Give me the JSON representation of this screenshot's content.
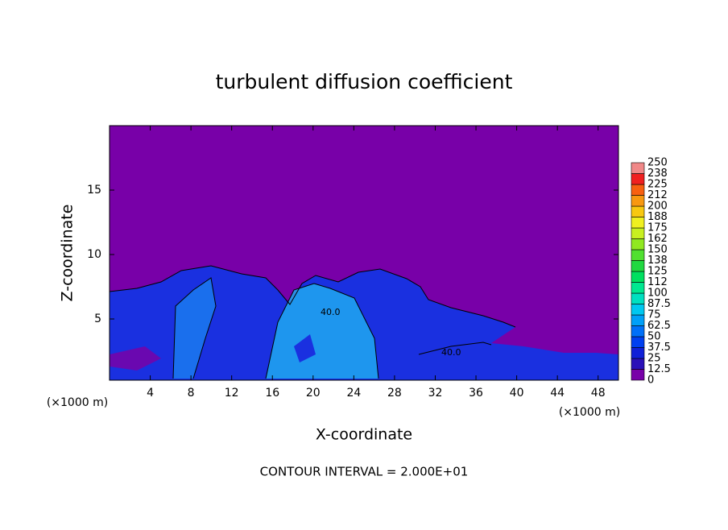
{
  "chart_data": {
    "type": "contour",
    "title": "turbulent diffusion coefficient",
    "x_label": "X-coordinate",
    "y_label": "Z-coordinate",
    "x_unit": "(×1000 m)",
    "x_unit_right": "(×1000 m)",
    "footer": "CONTOUR INTERVAL = 2.000E+01",
    "contour_labels": [
      "40.0",
      "40.0"
    ],
    "xlim": [
      0,
      50
    ],
    "ylim": [
      0,
      20
    ],
    "xticks": [
      4,
      8,
      12,
      16,
      20,
      24,
      28,
      32,
      36,
      40,
      44,
      48
    ],
    "yticks": [
      5,
      10,
      15
    ],
    "colorbar": {
      "levels": [
        0,
        12.5,
        25,
        37.5,
        50,
        62.5,
        75,
        87.5,
        100,
        {
          "value": 112.5,
          "label": "112"
        },
        125,
        {
          "value": 137.5,
          "label": "138"
        },
        150,
        {
          "value": 162.5,
          "label": "162"
        },
        175,
        {
          "value": 187.5,
          "label": "188"
        },
        200,
        {
          "value": 212.5,
          "label": "212"
        },
        225,
        {
          "value": 237.5,
          "label": "238"
        },
        250
      ],
      "colors": [
        "#7800a8",
        "#2a10b8",
        "#1020d8",
        "#0040f0",
        "#0070f8",
        "#00a0f8",
        "#00c8f0",
        "#00e0c0",
        "#00e890",
        "#00e060",
        "#20d840",
        "#50e030",
        "#90e820",
        "#c8f020",
        "#f0f020",
        "#f8c810",
        "#f89810",
        "#f86010",
        "#f02020",
        "#f08888"
      ]
    }
  }
}
